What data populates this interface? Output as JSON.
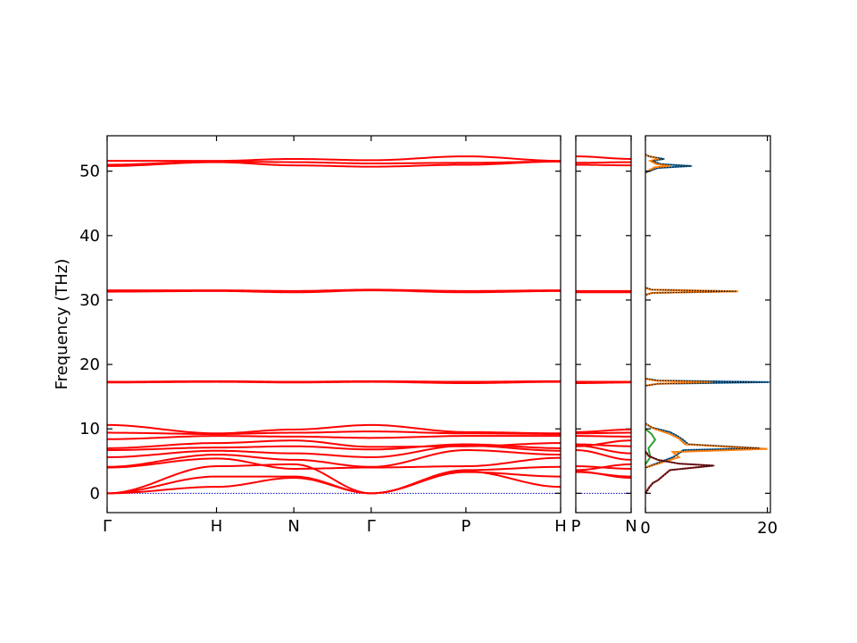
{
  "chart_data": [
    {
      "type": "line",
      "name": "band-structure",
      "ylabel": "Frequency (THz)",
      "ylim": [
        -3,
        55.5
      ],
      "yticks": [
        0,
        10,
        20,
        30,
        40,
        50
      ],
      "xticks": [
        {
          "label": "Γ",
          "x": 0.0
        },
        {
          "label": "H",
          "x": 1.0
        },
        {
          "label": "N",
          "x": 1.707
        },
        {
          "label": "Γ",
          "x": 2.414
        },
        {
          "label": "P",
          "x": 3.28
        },
        {
          "label": "H",
          "x": 4.146
        }
      ],
      "xlim": [
        0,
        4.146
      ],
      "line_color": "#ff0000",
      "zero_line_color": "#0000cc",
      "series": [
        {
          "values": [
            0,
            1.0,
            2.4,
            0,
            3.4,
            1.0
          ]
        },
        {
          "values": [
            0,
            2.6,
            2.6,
            0,
            3.3,
            2.6
          ]
        },
        {
          "values": [
            0,
            4.2,
            4.5,
            0,
            3.6,
            4.1
          ]
        },
        {
          "values": [
            4.0,
            5.4,
            3.8,
            4.0,
            4.2,
            5.5
          ]
        },
        {
          "values": [
            4.1,
            6.0,
            5.2,
            4.1,
            6.7,
            6.0
          ]
        },
        {
          "values": [
            5.6,
            6.6,
            6.2,
            5.6,
            7.4,
            6.6
          ]
        },
        {
          "values": [
            6.7,
            7.1,
            7.3,
            6.8,
            7.6,
            7.0
          ]
        },
        {
          "values": [
            7.0,
            7.8,
            8.2,
            7.2,
            7.3,
            7.8
          ]
        },
        {
          "values": [
            8.4,
            8.9,
            8.8,
            8.6,
            8.9,
            8.9
          ]
        },
        {
          "values": [
            9.4,
            9.2,
            9.4,
            9.6,
            9.3,
            9.2
          ]
        },
        {
          "values": [
            10.6,
            9.3,
            9.9,
            10.6,
            9.5,
            9.3
          ]
        },
        {
          "values": [
            17.2,
            17.3,
            17.2,
            17.3,
            17.1,
            17.3
          ]
        },
        {
          "values": [
            17.3,
            17.4,
            17.3,
            17.4,
            17.3,
            17.4
          ]
        },
        {
          "values": [
            31.3,
            31.4,
            31.2,
            31.5,
            31.2,
            31.4
          ]
        },
        {
          "values": [
            31.5,
            31.5,
            31.4,
            31.6,
            31.4,
            31.5
          ]
        },
        {
          "values": [
            50.8,
            51.4,
            50.9,
            50.7,
            51.0,
            51.5
          ]
        },
        {
          "values": [
            51.0,
            51.5,
            51.4,
            51.2,
            51.3,
            51.5
          ]
        },
        {
          "values": [
            51.6,
            51.6,
            51.9,
            51.7,
            52.3,
            51.6
          ]
        }
      ]
    },
    {
      "type": "line",
      "name": "band-segment",
      "ylim": [
        -3,
        55.5
      ],
      "xticks": [
        {
          "label": "P",
          "x": 0.0
        },
        {
          "label": "N",
          "x": 0.5
        }
      ],
      "xlim": [
        0,
        0.5
      ],
      "series": [
        {
          "values": [
            3.4,
            2.4
          ]
        },
        {
          "values": [
            3.3,
            2.6
          ]
        },
        {
          "values": [
            3.6,
            4.5
          ]
        },
        {
          "values": [
            4.2,
            3.8
          ]
        },
        {
          "values": [
            6.7,
            5.2
          ]
        },
        {
          "values": [
            7.4,
            6.2
          ]
        },
        {
          "values": [
            7.6,
            7.3
          ]
        },
        {
          "values": [
            7.3,
            8.2
          ]
        },
        {
          "values": [
            8.9,
            8.8
          ]
        },
        {
          "values": [
            9.3,
            9.4
          ]
        },
        {
          "values": [
            9.5,
            9.9
          ]
        },
        {
          "values": [
            17.1,
            17.2
          ]
        },
        {
          "values": [
            17.3,
            17.3
          ]
        },
        {
          "values": [
            31.2,
            31.2
          ]
        },
        {
          "values": [
            31.4,
            31.4
          ]
        },
        {
          "values": [
            51.0,
            50.9
          ]
        },
        {
          "values": [
            51.3,
            51.4
          ]
        },
        {
          "values": [
            52.3,
            51.9
          ]
        }
      ]
    },
    {
      "type": "area",
      "name": "density-of-states",
      "xticks": [
        0,
        20
      ],
      "xlim": [
        0,
        20.5
      ],
      "ylim": [
        -3,
        55.5
      ],
      "total_color": "#000000",
      "series": [
        {
          "color": "#1f77b4",
          "points": [
            [
              0,
              49.8
            ],
            [
              2.0,
              50.5
            ],
            [
              7.5,
              50.8
            ],
            [
              2.5,
              51.1
            ],
            [
              1.0,
              51.6
            ],
            [
              3.0,
              51.9
            ],
            [
              0.5,
              52.3
            ],
            [
              0,
              52.6
            ]
          ]
        },
        {
          "color": "#ff7f0e",
          "points": [
            [
              0,
              49.8
            ],
            [
              1.5,
              50.6
            ],
            [
              4.0,
              50.8
            ],
            [
              1.8,
              51.1
            ],
            [
              0.8,
              51.6
            ],
            [
              2.2,
              51.9
            ],
            [
              0,
              52.5
            ]
          ]
        },
        {
          "color": "#1f77b4",
          "points": [
            [
              0,
              30.8
            ],
            [
              1.0,
              31.1
            ],
            [
              14.8,
              31.35
            ],
            [
              1.0,
              31.6
            ],
            [
              0,
              31.9
            ]
          ]
        },
        {
          "color": "#ff7f0e",
          "points": [
            [
              0,
              30.8
            ],
            [
              1.0,
              31.1
            ],
            [
              15.2,
              31.35
            ],
            [
              0.8,
              31.6
            ],
            [
              0,
              31.9
            ]
          ]
        },
        {
          "color": "#1f77b4",
          "points": [
            [
              0,
              16.7
            ],
            [
              2.0,
              17.0
            ],
            [
              20.3,
              17.25
            ],
            [
              2.0,
              17.5
            ],
            [
              0,
              17.8
            ]
          ]
        },
        {
          "color": "#ff7f0e",
          "points": [
            [
              0,
              16.7
            ],
            [
              2.0,
              17.0
            ],
            [
              11.0,
              17.25
            ],
            [
              1.5,
              17.5
            ],
            [
              0,
              17.8
            ]
          ]
        },
        {
          "color": "#1f77b4",
          "points": [
            [
              0,
              4.0
            ],
            [
              4.5,
              5.6
            ],
            [
              6.2,
              6.7
            ],
            [
              18.6,
              7.0
            ],
            [
              7.0,
              7.6
            ],
            [
              6.0,
              8.4
            ],
            [
              5.0,
              9.0
            ],
            [
              4.0,
              9.5
            ],
            [
              1.0,
              10.2
            ],
            [
              0,
              10.8
            ]
          ]
        },
        {
          "color": "#ff7f0e",
          "points": [
            [
              0,
              4.0
            ],
            [
              5.5,
              5.6
            ],
            [
              4.5,
              6.4
            ],
            [
              20.0,
              6.9
            ],
            [
              6.5,
              7.6
            ],
            [
              5.5,
              8.5
            ],
            [
              4.0,
              9.2
            ],
            [
              1.5,
              10.0
            ],
            [
              0,
              10.8
            ]
          ]
        },
        {
          "color": "#2ca02c",
          "points": [
            [
              0,
              4.5
            ],
            [
              0.8,
              5.6
            ],
            [
              0.5,
              7.0
            ],
            [
              1.6,
              8.3
            ],
            [
              1.0,
              9.2
            ],
            [
              0,
              10.0
            ]
          ]
        },
        {
          "color": "#8c1c1c",
          "points": [
            [
              0,
              0
            ],
            [
              0.5,
              0.8
            ],
            [
              1.2,
              1.6
            ],
            [
              2.0,
              2.0
            ],
            [
              3.0,
              2.8
            ],
            [
              4.0,
              3.6
            ],
            [
              11.2,
              4.3
            ],
            [
              5.5,
              4.6
            ],
            [
              2.0,
              5.2
            ],
            [
              0.5,
              5.8
            ],
            [
              0,
              6.5
            ]
          ]
        }
      ]
    }
  ]
}
